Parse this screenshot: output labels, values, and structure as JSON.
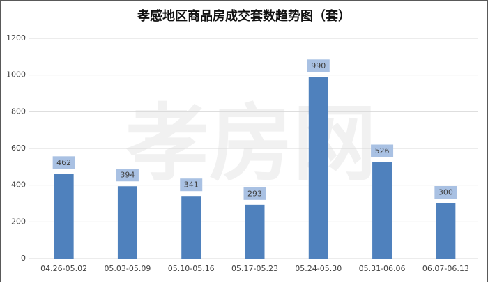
{
  "chart_data": {
    "type": "bar",
    "title": "孝感地区商品房成交套数趋势图（套）",
    "watermark": "孝房网",
    "categories": [
      "04.26-05.02",
      "05.03-05.09",
      "05.10-05.16",
      "05.17-05.23",
      "05.24-05.30",
      "05.31-06.06",
      "06.07-06.13"
    ],
    "values": [
      462,
      394,
      341,
      293,
      990,
      526,
      300
    ],
    "color": "#4f81bd",
    "label_box_color": "#a9c1e3",
    "ylim": [
      0,
      1200
    ],
    "yticks": [
      0,
      200,
      400,
      600,
      800,
      1000,
      1200
    ],
    "grid": true
  }
}
